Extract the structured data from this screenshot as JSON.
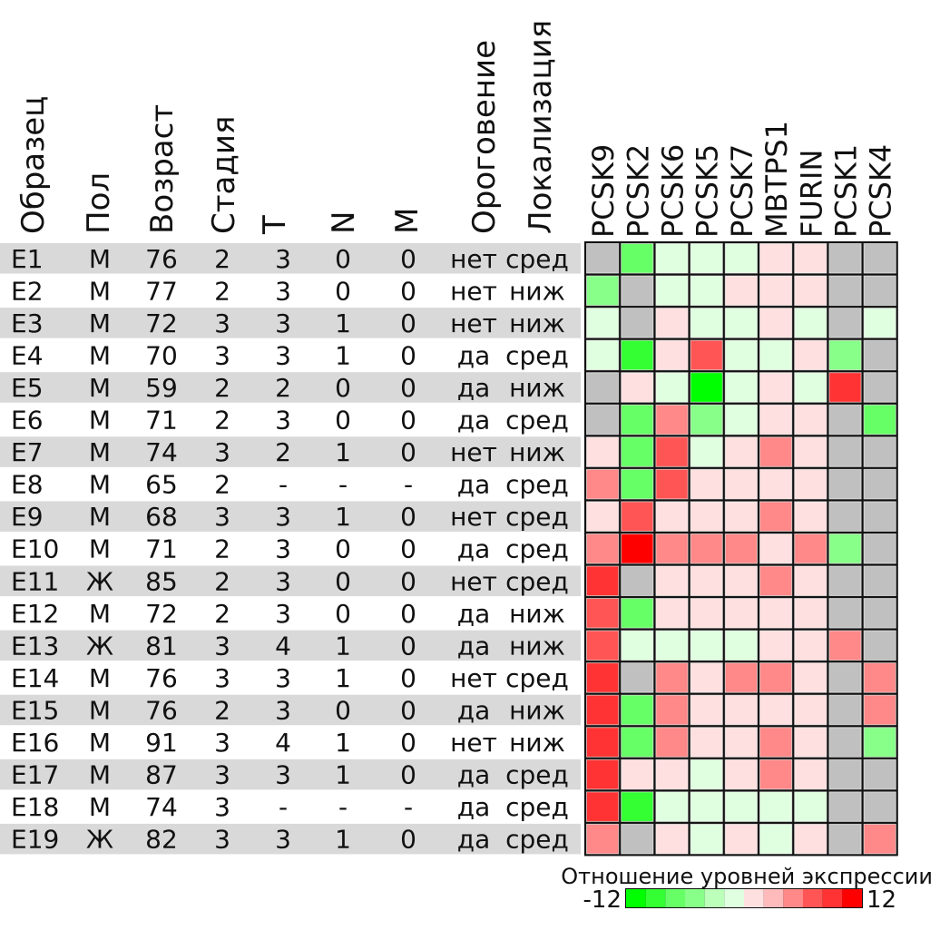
{
  "table": {
    "headers": [
      "Образец",
      "Пол",
      "Возраст",
      "Стадия",
      "T",
      "N",
      "M",
      "Ороговение",
      "Локализация"
    ],
    "rows": [
      [
        "E1",
        "М",
        "76",
        "2",
        "3",
        "0",
        "0",
        "нет",
        "сред"
      ],
      [
        "E2",
        "М",
        "77",
        "2",
        "3",
        "0",
        "0",
        "нет",
        "ниж"
      ],
      [
        "E3",
        "М",
        "72",
        "3",
        "3",
        "1",
        "0",
        "нет",
        "ниж"
      ],
      [
        "E4",
        "М",
        "70",
        "3",
        "3",
        "1",
        "0",
        "да",
        "сред"
      ],
      [
        "E5",
        "М",
        "59",
        "2",
        "2",
        "0",
        "0",
        "да",
        "ниж"
      ],
      [
        "E6",
        "М",
        "71",
        "2",
        "3",
        "0",
        "0",
        "да",
        "сред"
      ],
      [
        "E7",
        "М",
        "74",
        "3",
        "2",
        "1",
        "0",
        "нет",
        "ниж"
      ],
      [
        "E8",
        "М",
        "65",
        "2",
        "-",
        "-",
        "-",
        "да",
        "сред"
      ],
      [
        "E9",
        "М",
        "68",
        "3",
        "3",
        "1",
        "0",
        "нет",
        "сред"
      ],
      [
        "E10",
        "М",
        "71",
        "2",
        "3",
        "0",
        "0",
        "да",
        "сред"
      ],
      [
        "E11",
        "Ж",
        "85",
        "2",
        "3",
        "0",
        "0",
        "нет",
        "сред"
      ],
      [
        "E12",
        "М",
        "72",
        "2",
        "3",
        "0",
        "0",
        "да",
        "ниж"
      ],
      [
        "E13",
        "Ж",
        "81",
        "3",
        "4",
        "1",
        "0",
        "да",
        "ниж"
      ],
      [
        "E14",
        "М",
        "76",
        "3",
        "3",
        "1",
        "0",
        "нет",
        "сред"
      ],
      [
        "E15",
        "М",
        "76",
        "2",
        "3",
        "0",
        "0",
        "да",
        "ниж"
      ],
      [
        "E16",
        "М",
        "91",
        "3",
        "4",
        "1",
        "0",
        "нет",
        "ниж"
      ],
      [
        "E17",
        "М",
        "87",
        "3",
        "3",
        "1",
        "0",
        "да",
        "сред"
      ],
      [
        "E18",
        "М",
        "74",
        "3",
        "-",
        "-",
        "-",
        "да",
        "сред"
      ],
      [
        "E19",
        "Ж",
        "82",
        "3",
        "3",
        "1",
        "0",
        "да",
        "сред"
      ]
    ]
  },
  "chart_data": {
    "type": "heatmap",
    "columns": [
      "PCSK9",
      "PCSK2",
      "PCSK6",
      "PCSK5",
      "PCSK7",
      "MBTPS1",
      "FURIN",
      "PCSK1",
      "PCSK4"
    ],
    "rows": [
      "E1",
      "E2",
      "E3",
      "E4",
      "E5",
      "E6",
      "E7",
      "E8",
      "E9",
      "E10",
      "E11",
      "E12",
      "E13",
      "E14",
      "E15",
      "E16",
      "E17",
      "E18",
      "E19"
    ],
    "values": [
      [
        null,
        -7,
        -1,
        -1,
        -1,
        1,
        1,
        null,
        null
      ],
      [
        -5,
        null,
        -1,
        -1,
        1,
        1,
        1,
        null,
        null
      ],
      [
        -1,
        null,
        1,
        -1,
        -1,
        1,
        -1,
        null,
        -1
      ],
      [
        -1,
        -9,
        1,
        7,
        -1,
        -1,
        1,
        -5,
        null
      ],
      [
        null,
        1,
        -1,
        -11,
        -1,
        1,
        -1,
        9,
        null
      ],
      [
        null,
        -7,
        5,
        -5,
        -1,
        1,
        1,
        null,
        -7
      ],
      [
        1,
        -7,
        7,
        -1,
        1,
        5,
        1,
        null,
        null
      ],
      [
        5,
        -7,
        7,
        1,
        1,
        1,
        1,
        null,
        null
      ],
      [
        1,
        7,
        1,
        1,
        1,
        5,
        1,
        null,
        null
      ],
      [
        5,
        11,
        5,
        5,
        5,
        1,
        5,
        -5,
        null
      ],
      [
        9,
        null,
        1,
        1,
        1,
        5,
        1,
        null,
        null
      ],
      [
        7,
        -7,
        1,
        1,
        1,
        1,
        1,
        null,
        null
      ],
      [
        7,
        -1,
        -1,
        -1,
        -1,
        1,
        1,
        5,
        null
      ],
      [
        9,
        null,
        5,
        1,
        5,
        5,
        1,
        null,
        5
      ],
      [
        9,
        -7,
        5,
        1,
        1,
        1,
        1,
        null,
        5
      ],
      [
        9,
        -7,
        5,
        1,
        1,
        5,
        1,
        null,
        -5
      ],
      [
        9,
        1,
        1,
        -1,
        1,
        5,
        1,
        null,
        null
      ],
      [
        9,
        -9,
        -1,
        -1,
        -1,
        -1,
        -1,
        null,
        null
      ],
      [
        5,
        null,
        1,
        -1,
        1,
        -1,
        1,
        null,
        5
      ]
    ],
    "missing_color": "#c0c0c0",
    "legend": {
      "title": "Отношение уровней экспрессии",
      "min_label": "-12",
      "max_label": "12",
      "range": [
        -12,
        12
      ],
      "bins": [
        "#00ff00",
        "#33ff33",
        "#66ff66",
        "#88ff88",
        "#bbffbb",
        "#e0ffe0",
        "#ffe0e0",
        "#ffbbbb",
        "#ff8888",
        "#ff5555",
        "#ff3333",
        "#ff0000"
      ],
      "placement": "bottom-right"
    }
  },
  "colors": {
    "row_stripe": "#d9d9d9"
  }
}
